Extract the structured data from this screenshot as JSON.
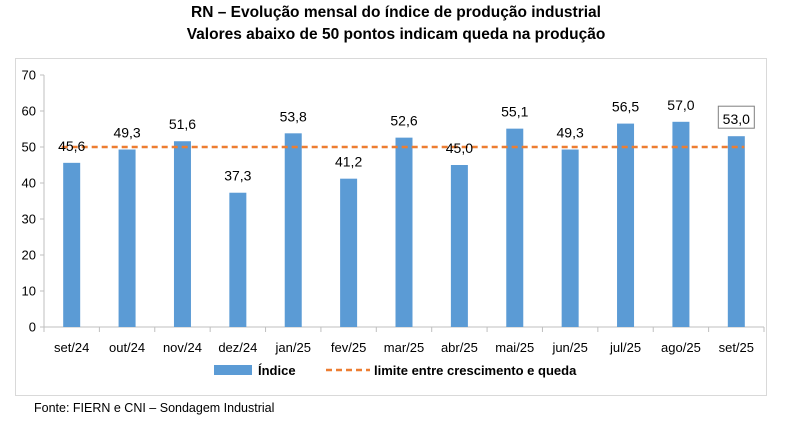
{
  "header": {
    "title": "RN – Evolução mensal do índice de produção industrial",
    "subtitle": "Valores abaixo de 50 pontos indicam queda na produção"
  },
  "footer": {
    "source": "Fonte: FIERN e CNI – Sondagem Industrial"
  },
  "colors": {
    "bar": "#5b9bd5",
    "threshold": "#ed7d31",
    "axis": "#bfbfbf",
    "text": "#000000"
  },
  "chart_data": {
    "type": "bar",
    "categories": [
      "set/24",
      "out/24",
      "nov/24",
      "dez/24",
      "jan/25",
      "fev/25",
      "mar/25",
      "abr/25",
      "mai/25",
      "jun/25",
      "jul/25",
      "ago/25",
      "set/25"
    ],
    "series": [
      {
        "name": "Índice",
        "values": [
          45.6,
          49.3,
          51.6,
          37.3,
          53.8,
          41.2,
          52.6,
          45.0,
          55.1,
          49.3,
          56.5,
          57.0,
          53.0
        ],
        "labels": [
          "45,6",
          "49,3",
          "51,6",
          "37,3",
          "53,8",
          "41,2",
          "52,6",
          "45,0",
          "55,1",
          "49,3",
          "56,5",
          "57,0",
          "53,0"
        ]
      }
    ],
    "threshold": {
      "name": "limite entre crescimento e queda",
      "value": 50
    },
    "ylim": [
      0,
      70
    ],
    "yticks": [
      0,
      10,
      20,
      30,
      40,
      50,
      60,
      70
    ],
    "highlighted_label_index": 12,
    "grid": false,
    "legend": "bottom"
  }
}
